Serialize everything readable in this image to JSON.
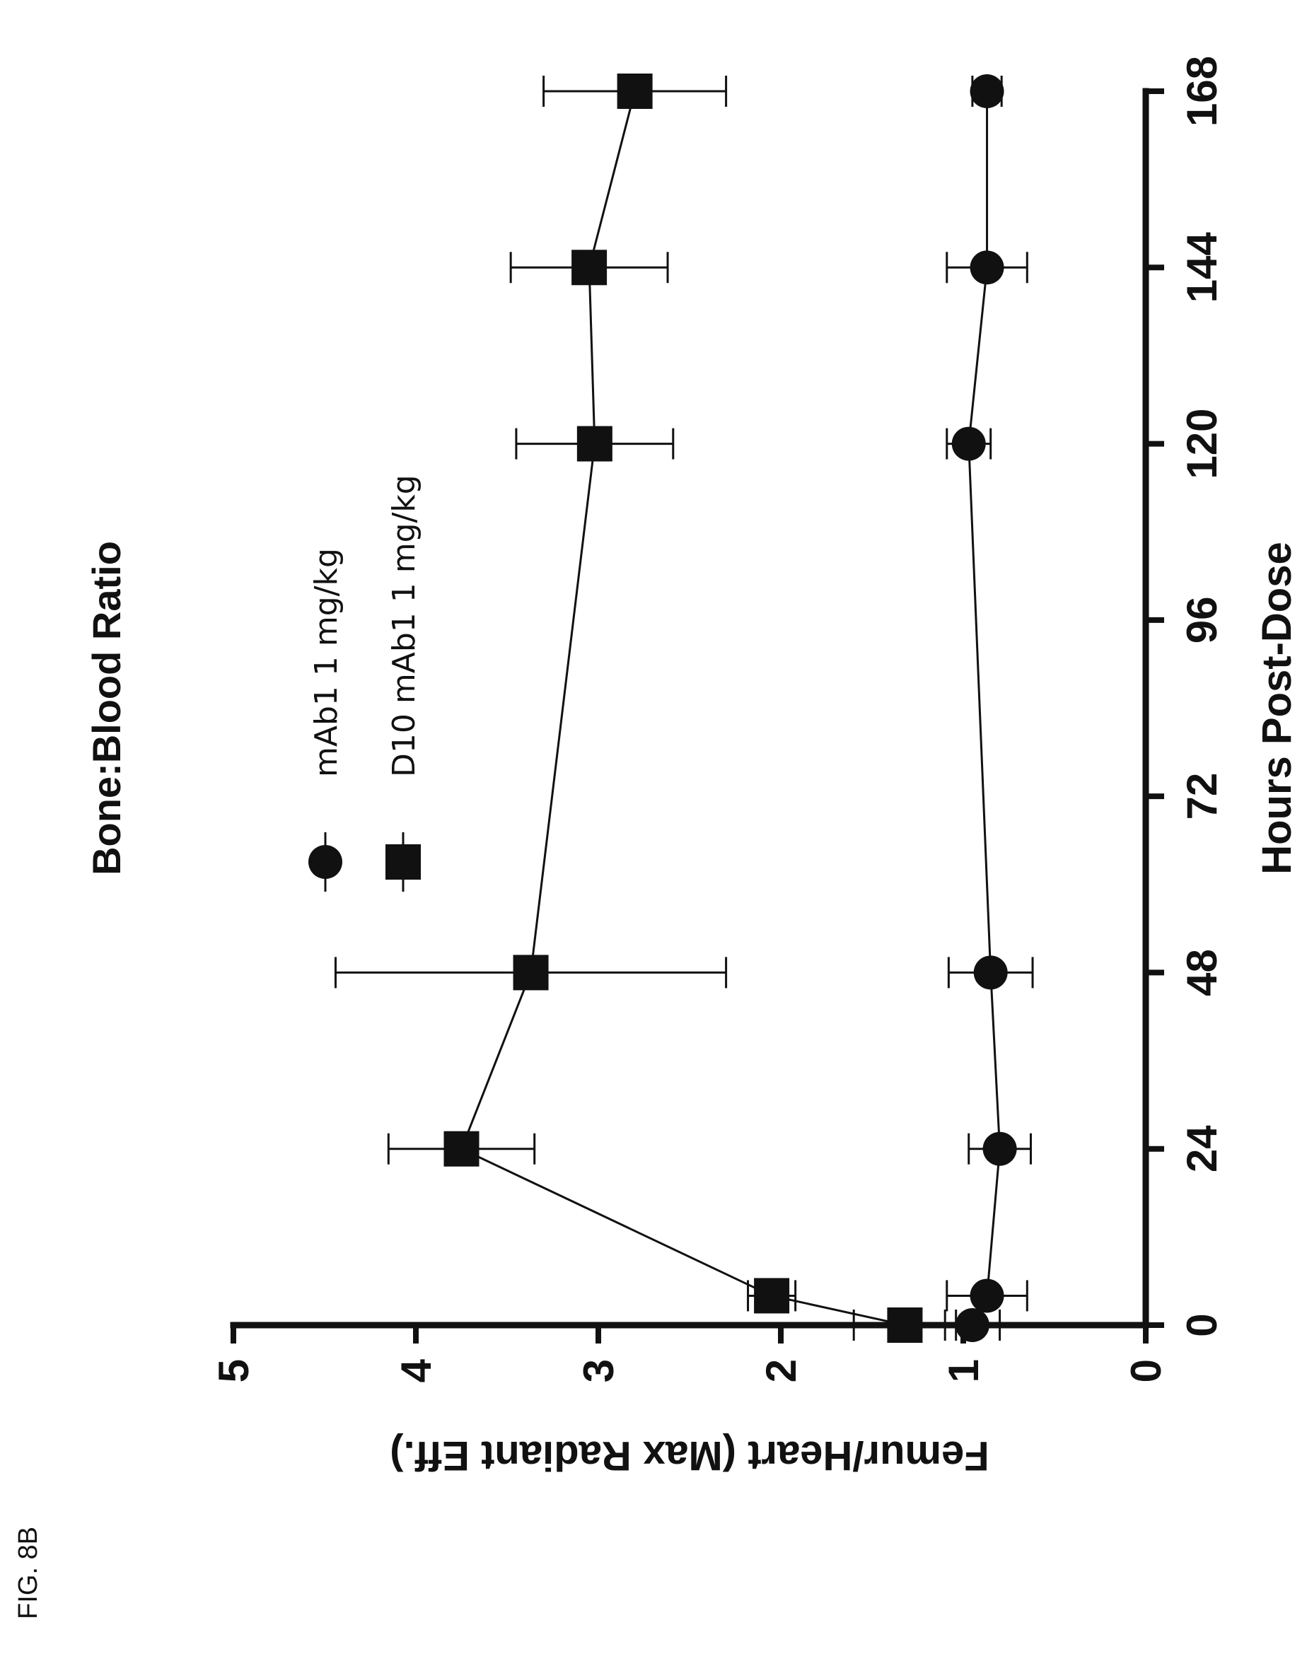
{
  "figure_label": "FIG. 8B",
  "chart_data": {
    "type": "line",
    "title": "Bone:Blood Ratio",
    "xlabel": "Hours Post-Dose",
    "ylabel": "Femur/Heart (Max Radiant Eff.)",
    "xlim": [
      0,
      168
    ],
    "ylim": [
      0,
      5
    ],
    "xticks": [
      0,
      24,
      48,
      72,
      96,
      120,
      144,
      168
    ],
    "yticks": [
      0,
      1,
      2,
      3,
      4,
      5
    ],
    "grid": false,
    "legend_position": "top-left",
    "orientation": "rotated 90 degrees counter-clockwise on the page",
    "series": [
      {
        "name": "mAb1  1 mg/kg",
        "marker": "circle",
        "color": "#111111",
        "points": [
          {
            "x": 0,
            "y": 0.95,
            "err": 0.15
          },
          {
            "x": 4,
            "y": 0.87,
            "err": 0.22
          },
          {
            "x": 24,
            "y": 0.8,
            "err": 0.17
          },
          {
            "x": 48,
            "y": 0.85,
            "err": 0.23
          },
          {
            "x": 120,
            "y": 0.97,
            "err": 0.12
          },
          {
            "x": 144,
            "y": 0.87,
            "err": 0.22
          },
          {
            "x": 168,
            "y": 0.87,
            "err": 0.08
          }
        ]
      },
      {
        "name": "D10 mAb1  1 mg/kg",
        "marker": "square",
        "color": "#111111",
        "points": [
          {
            "x": 0,
            "y": 1.32,
            "err": 0.28
          },
          {
            "x": 4,
            "y": 2.05,
            "err": 0.13
          },
          {
            "x": 24,
            "y": 3.75,
            "err": 0.4
          },
          {
            "x": 48,
            "y": 3.37,
            "err": 1.07
          },
          {
            "x": 120,
            "y": 3.02,
            "err": 0.43
          },
          {
            "x": 144,
            "y": 3.05,
            "err": 0.43
          },
          {
            "x": 168,
            "y": 2.8,
            "err": 0.5
          }
        ]
      }
    ]
  }
}
